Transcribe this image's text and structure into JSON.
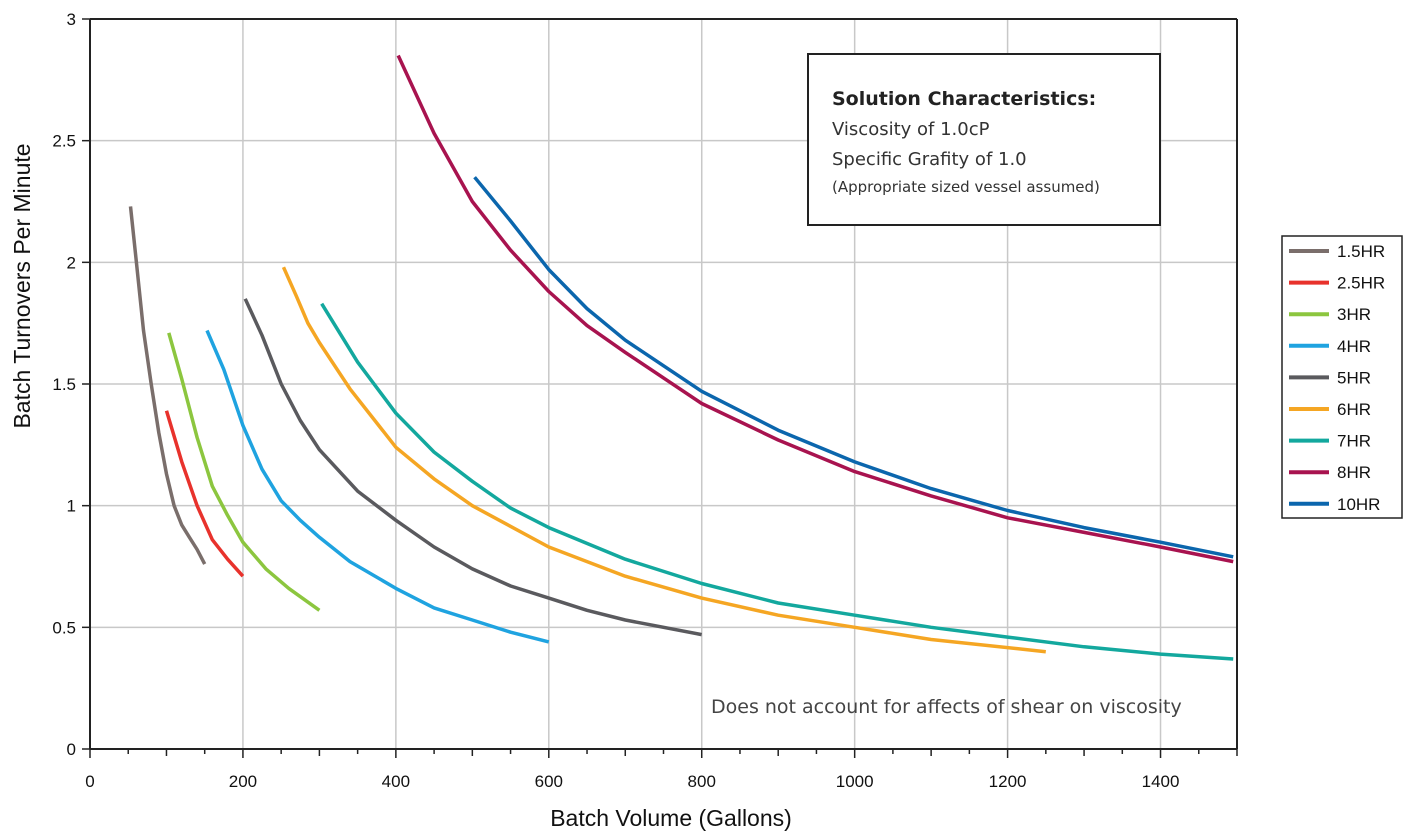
{
  "chart_data": {
    "type": "line",
    "xlabel": "Batch Volume (Gallons)",
    "ylabel": "Batch Turnovers Per Minute",
    "xlim": [
      0,
      1500
    ],
    "ylim": [
      0,
      3
    ],
    "x_ticks": [
      "0",
      "200",
      "400",
      "600",
      "800",
      "1000",
      "1200",
      "1400"
    ],
    "y_ticks": [
      "0",
      "0.5",
      "1",
      "1.5",
      "2",
      "2.5",
      "3"
    ],
    "grid": true,
    "legend_position": "right",
    "annotation_box": {
      "title": "Solution Characteristics:",
      "line1": "Viscosity of 1.0cP",
      "line2": "Specific Grafity of 1.0",
      "line3": "(Appropriate sized vessel assumed)"
    },
    "footnote": "Does not account for affects of shear on viscosity",
    "series": [
      {
        "name": "1.5HR",
        "color": "#7a6e6b",
        "x": [
          53,
          60,
          70,
          80,
          90,
          100,
          110,
          120,
          130,
          140,
          150
        ],
        "y": [
          2.23,
          2.02,
          1.72,
          1.5,
          1.3,
          1.13,
          1.0,
          0.92,
          0.87,
          0.82,
          0.76
        ]
      },
      {
        "name": "2.5HR",
        "color": "#e8322c",
        "x": [
          100,
          120,
          140,
          160,
          180,
          200
        ],
        "y": [
          1.39,
          1.18,
          1.0,
          0.86,
          0.78,
          0.71
        ]
      },
      {
        "name": "3HR",
        "color": "#8cc63f",
        "x": [
          103,
          120,
          140,
          160,
          180,
          200,
          230,
          260,
          300
        ],
        "y": [
          1.71,
          1.52,
          1.28,
          1.08,
          0.96,
          0.85,
          0.74,
          0.66,
          0.57
        ]
      },
      {
        "name": "4HR",
        "color": "#1fa3e0",
        "x": [
          153,
          175,
          200,
          225,
          250,
          275,
          300,
          340,
          400,
          450,
          500,
          550,
          600
        ],
        "y": [
          1.72,
          1.56,
          1.33,
          1.15,
          1.02,
          0.94,
          0.87,
          0.77,
          0.66,
          0.58,
          0.53,
          0.48,
          0.44
        ]
      },
      {
        "name": "5HR",
        "color": "#5a5a5e",
        "x": [
          203,
          225,
          250,
          275,
          300,
          350,
          400,
          450,
          500,
          550,
          600,
          650,
          700,
          800
        ],
        "y": [
          1.85,
          1.7,
          1.5,
          1.35,
          1.23,
          1.06,
          0.94,
          0.83,
          0.74,
          0.67,
          0.62,
          0.57,
          0.53,
          0.47
        ]
      },
      {
        "name": "6HR",
        "color": "#f5a623",
        "x": [
          253,
          270,
          285,
          300,
          340,
          400,
          450,
          500,
          600,
          700,
          800,
          900,
          1000,
          1100,
          1250
        ],
        "y": [
          1.98,
          1.86,
          1.75,
          1.67,
          1.48,
          1.24,
          1.11,
          1.0,
          0.83,
          0.71,
          0.62,
          0.55,
          0.5,
          0.45,
          0.4
        ]
      },
      {
        "name": "7HR",
        "color": "#13a89e",
        "x": [
          303,
          350,
          400,
          450,
          500,
          550,
          600,
          700,
          800,
          900,
          1000,
          1100,
          1200,
          1300,
          1400,
          1495
        ],
        "y": [
          1.83,
          1.59,
          1.38,
          1.22,
          1.1,
          0.99,
          0.91,
          0.78,
          0.68,
          0.6,
          0.55,
          0.5,
          0.46,
          0.42,
          0.39,
          0.37
        ]
      },
      {
        "name": "8HR",
        "color": "#a8134f",
        "x": [
          403,
          450,
          500,
          550,
          600,
          650,
          700,
          800,
          900,
          1000,
          1100,
          1200,
          1300,
          1400,
          1495
        ],
        "y": [
          2.85,
          2.53,
          2.25,
          2.05,
          1.88,
          1.74,
          1.63,
          1.42,
          1.27,
          1.14,
          1.04,
          0.95,
          0.89,
          0.83,
          0.77
        ]
      },
      {
        "name": "10HR",
        "color": "#0b66ad",
        "x": [
          503,
          550,
          600,
          650,
          700,
          800,
          900,
          1000,
          1100,
          1200,
          1300,
          1400,
          1495
        ],
        "y": [
          2.35,
          2.17,
          1.97,
          1.81,
          1.68,
          1.47,
          1.31,
          1.18,
          1.07,
          0.98,
          0.91,
          0.85,
          0.79
        ]
      }
    ]
  }
}
